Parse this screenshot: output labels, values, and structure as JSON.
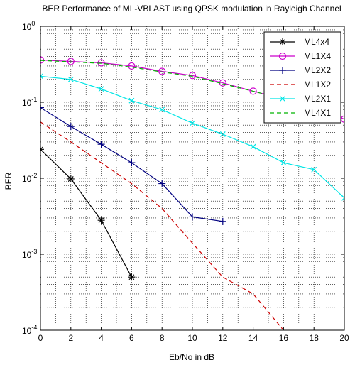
{
  "chart_data": {
    "type": "line",
    "title": "BER Performance of ML-VBLAST using QPSK modulation in Rayleigh Channel",
    "xlabel": "Eb/No in dB",
    "ylabel": "BER",
    "xlim": [
      0,
      20
    ],
    "ylim": [
      0.0001,
      1
    ],
    "yscale": "log",
    "grid": true,
    "legend_position": "top-right",
    "x_ticks": [
      "0",
      "2",
      "4",
      "6",
      "8",
      "10",
      "12",
      "14",
      "16",
      "18",
      "20"
    ],
    "y_ticks": [
      {
        "base": "10",
        "exp": "0"
      },
      {
        "base": "10",
        "exp": "-1"
      },
      {
        "base": "10",
        "exp": "-2"
      },
      {
        "base": "10",
        "exp": "-3"
      },
      {
        "base": "10",
        "exp": "-4"
      }
    ],
    "series": [
      {
        "name": "ML4x4",
        "color": "#000000",
        "line_style": "solid",
        "marker": "star",
        "x": [
          0,
          2,
          4,
          6
        ],
        "y": [
          0.024,
          0.0098,
          0.0028,
          0.0005
        ]
      },
      {
        "name": "ML1X4",
        "color": "#cc00cc",
        "line_style": "solid",
        "marker": "circle",
        "x": [
          0,
          2,
          4,
          6,
          8,
          10,
          12,
          14,
          16,
          18,
          20
        ],
        "y": [
          0.36,
          0.345,
          0.33,
          0.3,
          0.255,
          0.225,
          0.18,
          0.14,
          0.11,
          0.085,
          0.06
        ]
      },
      {
        "name": "ML2X2",
        "color": "#000080",
        "line_style": "solid",
        "marker": "plus",
        "x": [
          0,
          2,
          4,
          6,
          8,
          10,
          12
        ],
        "y": [
          0.085,
          0.048,
          0.028,
          0.016,
          0.0085,
          0.0031,
          0.0027
        ]
      },
      {
        "name": "ML1X2",
        "color": "#cc0000",
        "line_style": "dashed",
        "marker": "none",
        "x": [
          0,
          2,
          4,
          6,
          8,
          10,
          12,
          14,
          16
        ],
        "y": [
          0.055,
          0.03,
          0.016,
          0.0085,
          0.004,
          0.0014,
          0.0005,
          0.0003,
          0.0001
        ]
      },
      {
        "name": "ML2X1",
        "color": "#00e5e5",
        "line_style": "solid",
        "marker": "x",
        "x": [
          0,
          2,
          4,
          6,
          8,
          10,
          12,
          14,
          16,
          18,
          20
        ],
        "y": [
          0.22,
          0.2,
          0.15,
          0.105,
          0.08,
          0.053,
          0.038,
          0.026,
          0.016,
          0.013,
          0.0055
        ]
      },
      {
        "name": "ML4X1",
        "color": "#00b300",
        "line_style": "dashed",
        "marker": "none",
        "x": [
          0,
          2,
          4,
          6,
          8,
          10,
          12,
          14,
          16
        ],
        "y": [
          0.355,
          0.34,
          0.325,
          0.29,
          0.25,
          0.22,
          0.175,
          0.14,
          0.11
        ]
      }
    ]
  }
}
